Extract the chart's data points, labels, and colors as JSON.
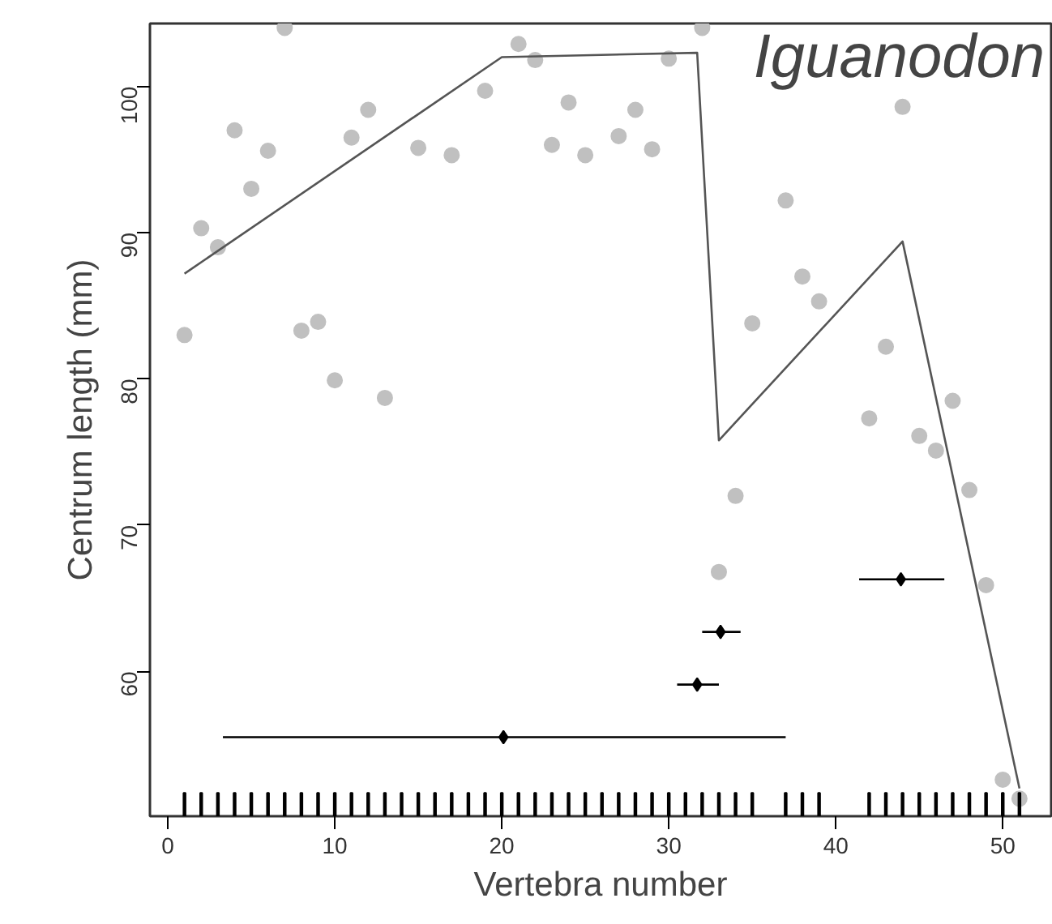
{
  "chart_data": {
    "type": "scatter",
    "xlabel": "Vertebra number",
    "ylabel": "Centrum length (mm)",
    "annotations": [
      "Iguanodon"
    ],
    "xlim": [
      -1.07,
      52.9
    ],
    "ylim": [
      50.1,
      104.3
    ],
    "xticks": [
      0,
      10,
      20,
      30,
      40,
      50
    ],
    "yticks": [
      60,
      70,
      80,
      90,
      100
    ],
    "grid": false,
    "series": [
      {
        "marker": "circle",
        "color": "#c0c0c0",
        "x": [
          1,
          2,
          3,
          4,
          5,
          6,
          7,
          8,
          9,
          10,
          11,
          12,
          13,
          15,
          17,
          19,
          21,
          22,
          23,
          24,
          25,
          27,
          28,
          29,
          30,
          32,
          33,
          34,
          35,
          37,
          38,
          39,
          42,
          43,
          44,
          45,
          46,
          47,
          48,
          49,
          50,
          51
        ],
        "values": [
          83.0,
          90.3,
          89.0,
          97.0,
          93.0,
          95.6,
          104.0,
          83.3,
          83.9,
          79.9,
          96.5,
          98.4,
          78.7,
          95.8,
          95.3,
          99.7,
          102.9,
          101.8,
          96.0,
          98.9,
          95.3,
          96.6,
          98.4,
          95.7,
          101.9,
          104.0,
          66.8,
          72.0,
          83.8,
          92.2,
          87.0,
          85.3,
          77.3,
          82.2,
          98.6,
          76.1,
          75.1,
          78.5,
          72.4,
          65.9,
          52.6,
          51.3
        ]
      },
      {
        "type": "line",
        "marker": "none",
        "color": "#555555",
        "x": [
          1,
          20,
          31.7,
          33,
          44,
          51
        ],
        "values": [
          87.2,
          102.0,
          102.3,
          75.8,
          89.4,
          52.0
        ]
      },
      {
        "type": "scatter",
        "marker": "diamond",
        "color": "#000000",
        "x": [
          20.1,
          31.7,
          33.1,
          43.9
        ],
        "values": [
          55.5,
          59.1,
          62.7,
          66.3
        ],
        "xerrors": [
          [
            3.3,
            37.0
          ],
          [
            30.5,
            33.0
          ],
          [
            32.0,
            34.3
          ],
          [
            41.4,
            46.5
          ]
        ]
      },
      {
        "type": "bar",
        "color": "#000000",
        "x": [
          1,
          2,
          3,
          4,
          5,
          6,
          7,
          8,
          9,
          10,
          11,
          12,
          13,
          14,
          15,
          16,
          17,
          18,
          19,
          20,
          21,
          22,
          23,
          24,
          25,
          26,
          27,
          28,
          29,
          30,
          31,
          32,
          33,
          34,
          35,
          37,
          38,
          39,
          42,
          43,
          44,
          45,
          46,
          47,
          48,
          49,
          50,
          51
        ],
        "base": [
          50.1,
          50.1,
          50.1,
          50.1,
          50.1,
          50.1,
          50.1,
          50.1,
          50.1,
          50.1,
          50.1,
          50.1,
          50.1,
          50.1,
          50.1,
          50.1,
          50.1,
          50.1,
          50.1,
          50.1,
          50.1,
          50.1,
          50.1,
          50.1,
          50.1,
          50.1,
          50.1,
          50.1,
          50.1,
          50.1,
          50.1,
          50.1,
          50.1,
          50.1,
          50.1,
          50.1,
          50.1,
          50.1,
          50.1,
          50.1,
          50.1,
          50.1,
          50.1,
          50.1,
          50.1,
          50.1,
          50.1,
          50.1
        ],
        "values": [
          1.6,
          1.6,
          1.6,
          1.6,
          1.6,
          1.6,
          1.6,
          1.6,
          1.6,
          1.6,
          1.6,
          1.6,
          1.6,
          1.6,
          1.6,
          1.6,
          1.6,
          1.6,
          1.6,
          1.6,
          1.6,
          1.6,
          1.6,
          1.6,
          1.6,
          1.6,
          1.6,
          1.6,
          1.6,
          1.6,
          1.6,
          1.6,
          1.6,
          1.6,
          1.6,
          1.6,
          1.6,
          1.6,
          1.6,
          1.6,
          1.6,
          1.6,
          1.6,
          1.6,
          1.6,
          1.6,
          1.6,
          1.6
        ]
      }
    ]
  }
}
